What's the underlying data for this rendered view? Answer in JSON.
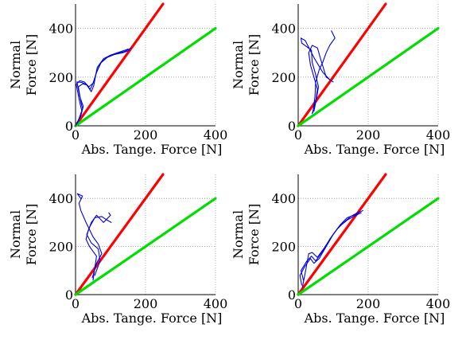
{
  "chart_data": [
    {
      "type": "line",
      "xlabel": "Abs. Tange. Force [N]",
      "ylabel_line1": "Normal",
      "ylabel_line2": "Force [N]",
      "xlim": [
        0,
        400
      ],
      "ylim": [
        0,
        500
      ],
      "xticks": [
        "0",
        "200",
        "400"
      ],
      "yticks": [
        "0",
        "200",
        "400"
      ],
      "grid": true,
      "series": [
        {
          "role": "cone-boundary",
          "color": "#ff0000",
          "x": [
            0,
            250
          ],
          "y": [
            0,
            500
          ]
        },
        {
          "role": "cone-boundary",
          "color": "#00dd00",
          "x": [
            0,
            400
          ],
          "y": [
            0,
            400
          ]
        },
        {
          "role": "trajectory",
          "color": "#0000dd",
          "x": [
            0,
            8,
            18,
            10,
            2,
            12,
            25,
            38,
            50,
            60,
            75,
            95,
            115,
            140,
            160
          ],
          "y": [
            0,
            20,
            60,
            110,
            170,
            185,
            180,
            160,
            175,
            220,
            265,
            285,
            295,
            305,
            320
          ]
        },
        {
          "role": "trajectory",
          "color": "#0000dd",
          "x": [
            5,
            15,
            22,
            12,
            4,
            18,
            30,
            42,
            55,
            62,
            80,
            100,
            120,
            145,
            150
          ],
          "y": [
            10,
            40,
            80,
            120,
            180,
            178,
            170,
            150,
            190,
            240,
            275,
            290,
            300,
            312,
            315
          ]
        },
        {
          "role": "trajectory",
          "color": "#0000dd",
          "x": [
            2,
            10,
            20,
            15,
            8,
            20,
            32,
            45,
            52,
            58,
            70,
            90,
            110,
            135,
            155
          ],
          "y": [
            5,
            30,
            70,
            100,
            160,
            172,
            168,
            140,
            165,
            210,
            255,
            280,
            292,
            300,
            310
          ]
        }
      ]
    },
    {
      "type": "line",
      "xlabel": "Abs. Tange. Force [N]",
      "ylabel_line1": "Normal",
      "ylabel_line2": "Force [N]",
      "xlim": [
        0,
        400
      ],
      "ylim": [
        0,
        500
      ],
      "xticks": [
        "0",
        "200",
        "400"
      ],
      "yticks": [
        "0",
        "200",
        "400"
      ],
      "grid": true,
      "series": [
        {
          "role": "cone-boundary",
          "color": "#ff0000",
          "x": [
            0,
            250
          ],
          "y": [
            0,
            500
          ]
        },
        {
          "role": "cone-boundary",
          "color": "#00dd00",
          "x": [
            0,
            400
          ],
          "y": [
            0,
            400
          ]
        },
        {
          "role": "trajectory",
          "color": "#0000dd",
          "x": [
            40,
            50,
            55,
            45,
            35,
            30,
            40,
            55,
            65,
            80,
            100
          ],
          "y": [
            50,
            100,
            150,
            200,
            250,
            300,
            330,
            320,
            270,
            200,
            180
          ]
        },
        {
          "role": "trajectory",
          "color": "#0000dd",
          "x": [
            45,
            52,
            58,
            50,
            40,
            38,
            10,
            8,
            20,
            45,
            70,
            90
          ],
          "y": [
            60,
            110,
            160,
            210,
            260,
            310,
            340,
            360,
            350,
            280,
            220,
            190
          ]
        },
        {
          "role": "trajectory",
          "color": "#0000dd",
          "x": [
            42,
            48,
            50,
            60,
            70,
            80,
            90,
            105,
            95
          ],
          "y": [
            55,
            120,
            180,
            230,
            260,
            300,
            330,
            360,
            390
          ]
        }
      ]
    },
    {
      "type": "line",
      "xlabel": "Abs. Tange. Force [N]",
      "ylabel_line1": "Normal",
      "ylabel_line2": "Force [N]",
      "xlim": [
        0,
        400
      ],
      "ylim": [
        0,
        500
      ],
      "xticks": [
        "0",
        "200",
        "400"
      ],
      "yticks": [
        "0",
        "200",
        "400"
      ],
      "grid": true,
      "series": [
        {
          "role": "cone-boundary",
          "color": "#ff0000",
          "x": [
            0,
            250
          ],
          "y": [
            0,
            500
          ]
        },
        {
          "role": "cone-boundary",
          "color": "#00dd00",
          "x": [
            0,
            400
          ],
          "y": [
            0,
            400
          ]
        },
        {
          "role": "trajectory",
          "color": "#0000dd",
          "x": [
            50,
            55,
            60,
            40,
            30,
            35,
            45,
            60,
            80,
            100,
            95
          ],
          "y": [
            60,
            110,
            160,
            200,
            230,
            260,
            300,
            330,
            300,
            330,
            340
          ]
        },
        {
          "role": "trajectory",
          "color": "#0000dd",
          "x": [
            48,
            60,
            75,
            65,
            50,
            30,
            15,
            10,
            20,
            5,
            15
          ],
          "y": [
            70,
            130,
            170,
            210,
            240,
            300,
            350,
            380,
            410,
            420,
            400
          ]
        },
        {
          "role": "trajectory",
          "color": "#0000dd",
          "x": [
            55,
            70,
            65,
            45,
            32,
            40,
            55,
            75,
            90,
            102
          ],
          "y": [
            80,
            140,
            190,
            215,
            250,
            280,
            320,
            325,
            310,
            300
          ]
        }
      ]
    },
    {
      "type": "line",
      "xlabel": "Abs. Tange. Force [N]",
      "ylabel_line1": "Normal",
      "ylabel_line2": "Force [N]",
      "xlim": [
        0,
        400
      ],
      "ylim": [
        0,
        500
      ],
      "xticks": [
        "0",
        "200",
        "400"
      ],
      "yticks": [
        "0",
        "200",
        "400"
      ],
      "grid": true,
      "series": [
        {
          "role": "cone-boundary",
          "color": "#ff0000",
          "x": [
            0,
            250
          ],
          "y": [
            0,
            500
          ]
        },
        {
          "role": "cone-boundary",
          "color": "#00dd00",
          "x": [
            0,
            400
          ],
          "y": [
            0,
            400
          ]
        },
        {
          "role": "trajectory",
          "color": "#0000dd",
          "x": [
            10,
            5,
            20,
            35,
            45,
            60,
            80,
            100,
            120,
            140,
            160,
            185
          ],
          "y": [
            40,
            80,
            120,
            150,
            130,
            150,
            200,
            250,
            290,
            320,
            330,
            350
          ]
        },
        {
          "role": "trajectory",
          "color": "#0000dd",
          "x": [
            15,
            8,
            25,
            38,
            50,
            70,
            90,
            110,
            130,
            150,
            175
          ],
          "y": [
            60,
            100,
            140,
            160,
            140,
            180,
            230,
            270,
            300,
            325,
            345
          ]
        },
        {
          "role": "trajectory",
          "color": "#0000dd",
          "x": [
            12,
            20,
            30,
            40,
            55,
            75,
            95,
            115,
            140,
            165,
            180
          ],
          "y": [
            30,
            90,
            170,
            175,
            155,
            195,
            240,
            280,
            310,
            330,
            340
          ]
        }
      ]
    }
  ]
}
